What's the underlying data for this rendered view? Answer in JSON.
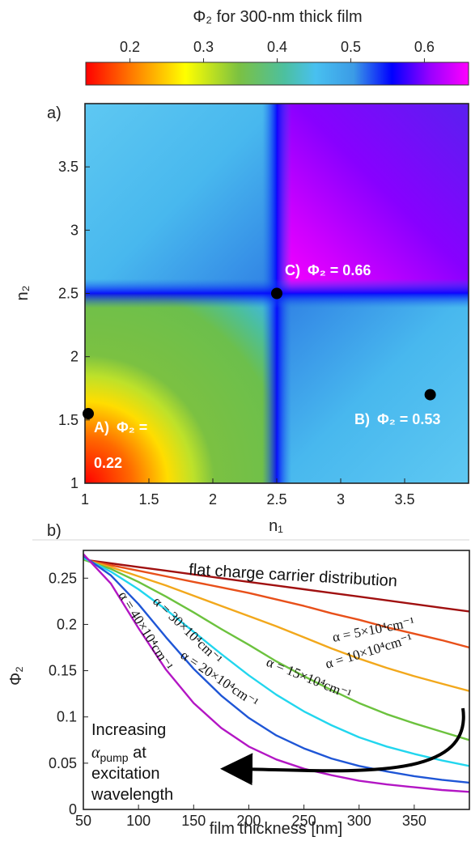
{
  "chart_data": [
    {
      "type": "heatmap",
      "panel_label": "a)",
      "title": "Φ₂ for 300-nm thick film",
      "colorbar": {
        "ticks": [
          "0.2",
          "0.3",
          "0.4",
          "0.5",
          "0.6"
        ],
        "tick_values": [
          0.2,
          0.3,
          0.4,
          0.5,
          0.6
        ],
        "range": [
          0.14,
          0.66
        ],
        "colormap": [
          "#ff0000",
          "#ff8800",
          "#ffff00",
          "#7bc142",
          "#4cc0a0",
          "#48c0f0",
          "#3b9be6",
          "#1f3cf0",
          "#0000ff",
          "#9900ff",
          "#ff00ff"
        ]
      },
      "xlabel": "n₁",
      "ylabel": "n₂",
      "x_ticks": [
        "1",
        "1.5",
        "2",
        "2.5",
        "3",
        "3.5"
      ],
      "x_tick_values": [
        1,
        1.5,
        2,
        2.5,
        3,
        3.5
      ],
      "y_ticks": [
        "1",
        "1.5",
        "2",
        "2.5",
        "3",
        "3.5"
      ],
      "y_tick_values": [
        1,
        1.5,
        2,
        2.5,
        3,
        3.5
      ],
      "xlim": [
        1,
        4
      ],
      "ylim": [
        1,
        4
      ],
      "regions": {
        "n1_lt_2.5_n2_lt_2.5": "green/yellow/red",
        "n1_lt_2.5_n2_gt_2.5": "light blue",
        "n1_gt_2.5_n2_lt_2.5": "light blue",
        "n1_gt_2.5_n2_gt_2.5": "violet/purple"
      },
      "points": [
        {
          "label": "A)",
          "phi_label": "Φ₂ =",
          "value_text": "0.22",
          "n1": 1.0,
          "n2": 1.55,
          "value": 0.22
        },
        {
          "label": "B)",
          "phi_label": "Φ₂ = 0.53",
          "n1": 3.7,
          "n2": 1.7,
          "value": 0.53
        },
        {
          "label": "C)",
          "phi_label": "Φ₂ = 0.66",
          "n1": 2.5,
          "n2": 2.5,
          "value": 0.66
        }
      ]
    },
    {
      "type": "line",
      "panel_label": "b)",
      "xlabel": "film thickness [nm]",
      "ylabel": "Φ₂",
      "xlim": [
        50,
        400
      ],
      "ylim": [
        0,
        0.28
      ],
      "x_ticks": [
        "50",
        "100",
        "150",
        "200",
        "250",
        "300",
        "350"
      ],
      "x_tick_values": [
        50,
        100,
        150,
        200,
        250,
        300,
        350
      ],
      "y_ticks": [
        "0",
        "0.05",
        "0.1",
        "0.15",
        "0.2",
        "0.25"
      ],
      "y_tick_values": [
        0,
        0.05,
        0.1,
        0.15,
        0.2,
        0.25
      ],
      "x": [
        50,
        75,
        100,
        125,
        150,
        175,
        200,
        225,
        250,
        275,
        300,
        325,
        350,
        375,
        400
      ],
      "series": [
        {
          "name": "flat charge carrier distribution",
          "color": "#a01010",
          "values": [
            0.27,
            0.266,
            0.262,
            0.258,
            0.254,
            0.25,
            0.246,
            0.242,
            0.238,
            0.234,
            0.23,
            0.226,
            0.222,
            0.218,
            0.214
          ]
        },
        {
          "name": "α = 5×10⁴cm⁻¹",
          "color": "#e8501a",
          "values": [
            0.27,
            0.264,
            0.258,
            0.252,
            0.246,
            0.24,
            0.234,
            0.227,
            0.22,
            0.212,
            0.205,
            0.197,
            0.19,
            0.183,
            0.175
          ]
        },
        {
          "name": "α = 10×10⁴cm⁻¹",
          "color": "#f2a81c",
          "values": [
            0.27,
            0.262,
            0.252,
            0.242,
            0.231,
            0.22,
            0.209,
            0.198,
            0.186,
            0.174,
            0.163,
            0.153,
            0.144,
            0.136,
            0.128
          ]
        },
        {
          "name": "α = 15×10⁴cm⁻¹",
          "color": "#6cc23e",
          "values": [
            0.27,
            0.26,
            0.246,
            0.23,
            0.213,
            0.195,
            0.178,
            0.16,
            0.144,
            0.129,
            0.115,
            0.103,
            0.093,
            0.084,
            0.075
          ]
        },
        {
          "name": "α = 20×10⁴cm⁻¹",
          "color": "#22d6ee",
          "values": [
            0.272,
            0.257,
            0.238,
            0.216,
            0.192,
            0.168,
            0.145,
            0.124,
            0.106,
            0.091,
            0.078,
            0.068,
            0.06,
            0.053,
            0.047
          ]
        },
        {
          "name": "α = 30×10⁴cm⁻¹",
          "color": "#1f56d6",
          "values": [
            0.274,
            0.253,
            0.222,
            0.186,
            0.152,
            0.123,
            0.099,
            0.08,
            0.066,
            0.055,
            0.047,
            0.041,
            0.036,
            0.032,
            0.029
          ]
        },
        {
          "name": "α = 40×10⁴cm⁻¹",
          "color": "#b316c4",
          "values": [
            0.276,
            0.244,
            0.196,
            0.151,
            0.115,
            0.088,
            0.068,
            0.054,
            0.044,
            0.037,
            0.031,
            0.027,
            0.024,
            0.021,
            0.019
          ]
        }
      ],
      "annotations": {
        "flat": "flat charge carrier distribution",
        "alpha": "α",
        "increasing_line1": "Increasing",
        "increasing_alpha": "α",
        "increasing_sub": "pump",
        "increasing_line2_suffix": " at",
        "increasing_line3": "excitation",
        "increasing_line4": "wavelength"
      }
    }
  ]
}
